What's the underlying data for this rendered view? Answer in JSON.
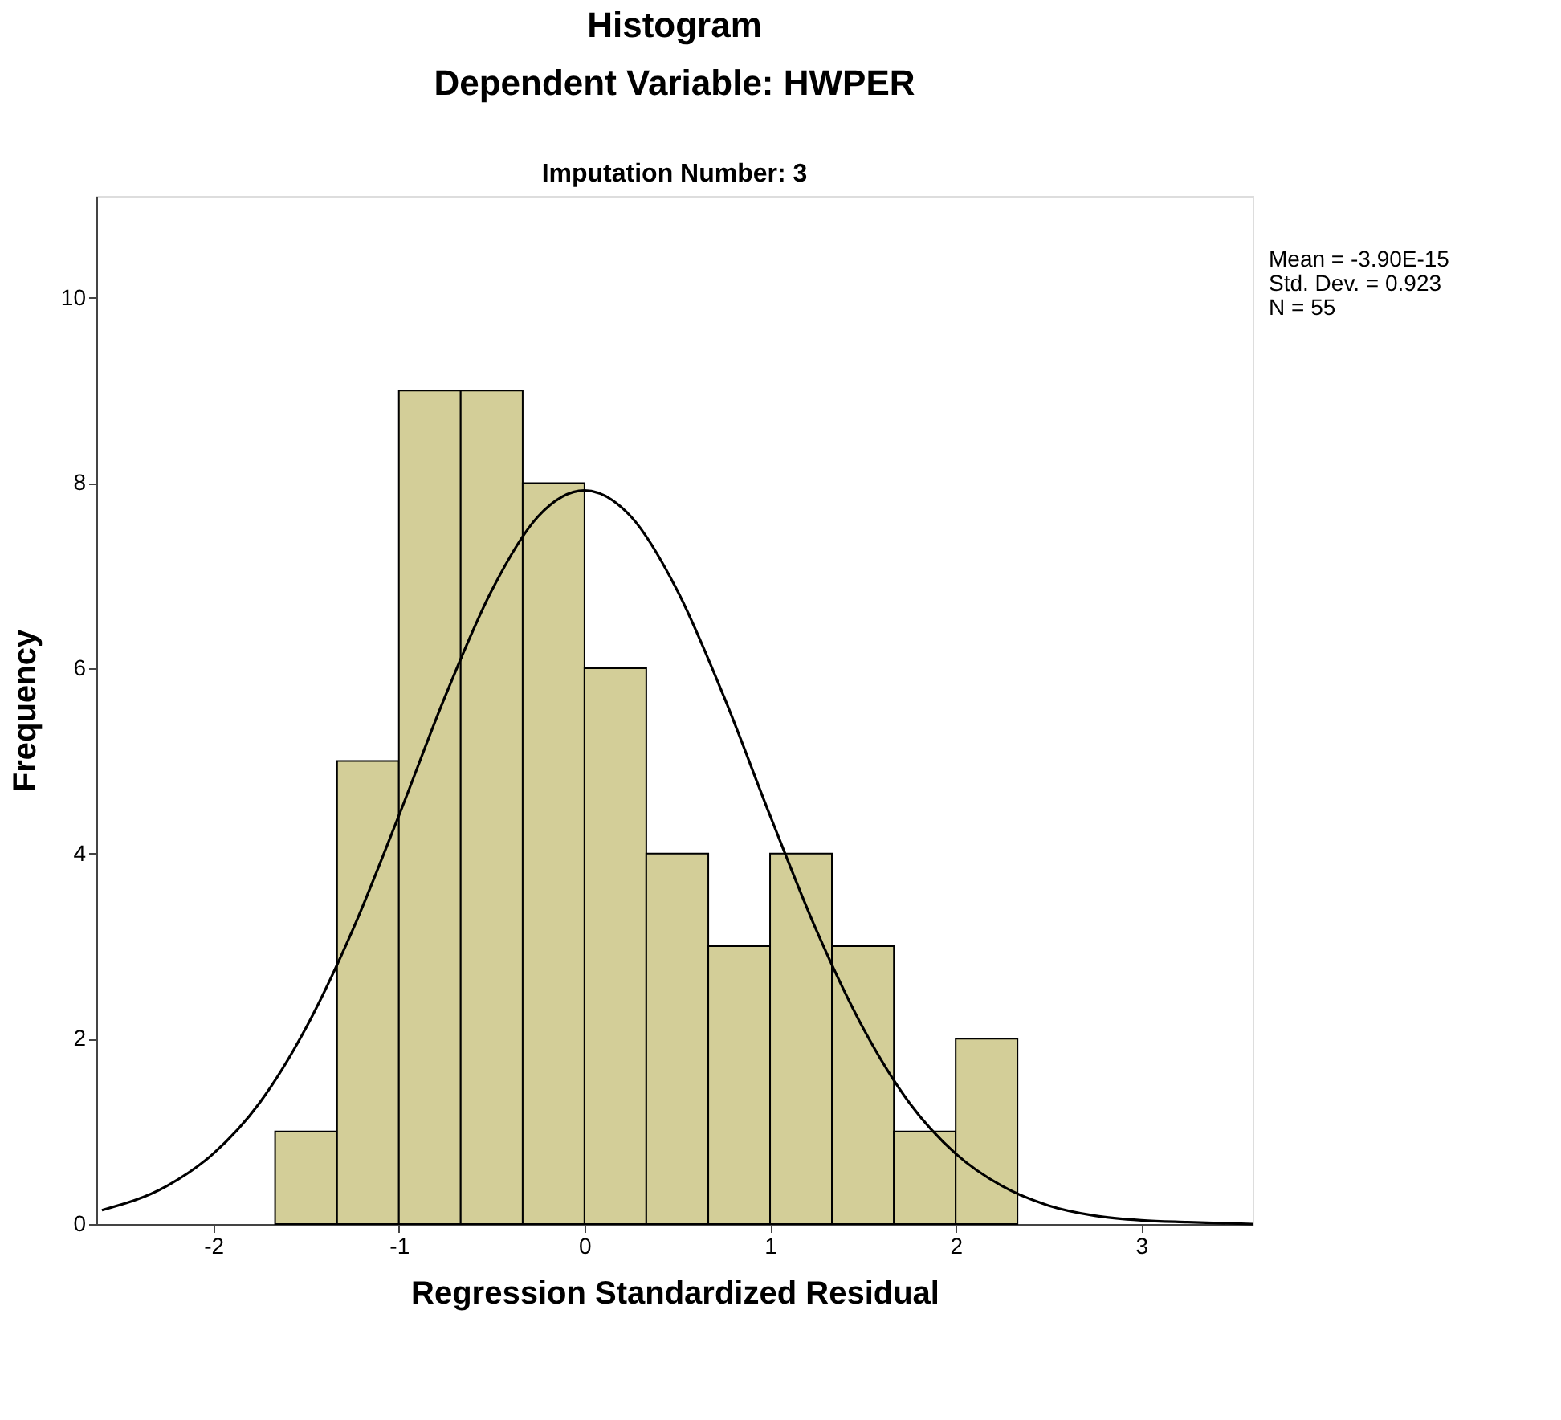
{
  "chart_data": {
    "type": "histogram",
    "title": "Histogram",
    "subtitle": "Dependent Variable: HWPER",
    "xlabel": "Regression Standardized Residual",
    "ylabel": "Frequency",
    "annotations": [
      "Imputation Number: 3",
      "Mean = -3.90E-15",
      "Std. Dev. = 0.923",
      "N = 55"
    ],
    "bins": [
      -1.667,
      -1.333,
      -1.0,
      -0.667,
      -0.333,
      0.0,
      0.333,
      0.667,
      1.0,
      1.333,
      1.667,
      2.0,
      2.333
    ],
    "values": [
      1,
      5,
      9,
      9,
      8,
      6,
      4,
      3,
      4,
      3,
      1,
      2
    ],
    "color": "#d3ce98",
    "series": [
      {
        "type": "line",
        "color": "#000000",
        "x": [
          -2.6,
          -2.25,
          -2.0,
          -1.75,
          -1.5,
          -1.25,
          -1.0,
          -0.75,
          -0.5,
          -0.25,
          0.0,
          0.25,
          0.5,
          0.75,
          1.0,
          1.25,
          1.5,
          1.75,
          2.0,
          2.25,
          2.5,
          2.75,
          3.0,
          3.25,
          3.6
        ],
        "values": [
          0.15,
          0.41,
          0.76,
          1.31,
          2.12,
          3.17,
          4.41,
          5.7,
          6.84,
          7.64,
          7.92,
          7.64,
          6.84,
          5.7,
          4.41,
          3.17,
          2.12,
          1.31,
          0.76,
          0.41,
          0.2,
          0.09,
          0.04,
          0.02,
          0.0
        ]
      }
    ],
    "xlim": [
      -2.63,
      3.6
    ],
    "ylim": [
      0,
      11.1
    ],
    "xticks": [
      -2,
      -1,
      0,
      1,
      2,
      3
    ],
    "yticks": [
      0,
      2,
      4,
      6,
      8,
      10
    ],
    "grid": false
  }
}
